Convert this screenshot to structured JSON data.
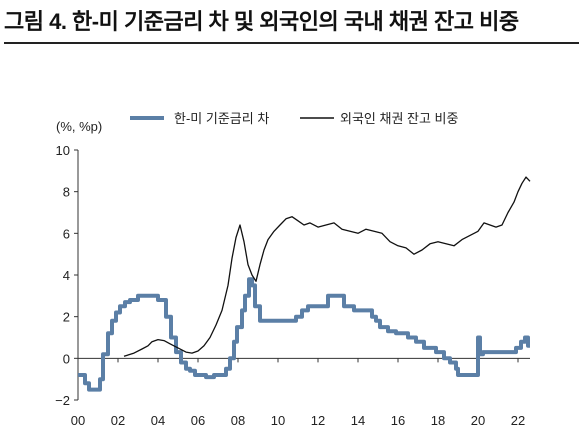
{
  "figure": {
    "title": "그림 4. 한-미 기준금리 차 및 외국인의 국내 채권 잔고 비중"
  },
  "chart_data": {
    "type": "line",
    "title": "그림 4. 한-미 기준금리 차 및 외국인의 국내 채권 잔고 비중",
    "ylabel": "(%, %p)",
    "xlabel": "",
    "xlim": [
      2000,
      2022.6
    ],
    "ylim": [
      -2,
      10
    ],
    "yticks": [
      -2,
      0,
      2,
      4,
      6,
      8,
      10
    ],
    "xticks": [
      2000,
      2002,
      2004,
      2006,
      2008,
      2010,
      2012,
      2014,
      2016,
      2018,
      2020,
      2022
    ],
    "xtick_labels": [
      "00",
      "02",
      "04",
      "06",
      "08",
      "10",
      "12",
      "14",
      "16",
      "18",
      "20",
      "22"
    ],
    "ytick_labels": [
      "−2",
      "0",
      "2",
      "4",
      "6",
      "8",
      "10"
    ],
    "grid": false,
    "legend_position": "top",
    "series": [
      {
        "name": "한-미 기준금리 차",
        "color": "#5b7fa6",
        "style": "step",
        "x": [
          2000.0,
          2000.35,
          2000.55,
          2001.1,
          2001.25,
          2001.5,
          2001.7,
          2001.9,
          2002.1,
          2002.35,
          2002.6,
          2003.0,
          2003.6,
          2004.0,
          2004.4,
          2004.65,
          2004.9,
          2005.15,
          2005.4,
          2005.6,
          2005.85,
          2006.1,
          2006.4,
          2006.6,
          2006.8,
          2007.1,
          2007.4,
          2007.6,
          2007.8,
          2007.95,
          2008.2,
          2008.35,
          2008.55,
          2008.7,
          2008.85,
          2009.1,
          2009.5,
          2010.6,
          2010.9,
          2011.2,
          2011.5,
          2012.5,
          2012.8,
          2013.3,
          2013.8,
          2014.7,
          2014.9,
          2015.1,
          2015.5,
          2015.9,
          2016.5,
          2016.9,
          2017.3,
          2017.9,
          2018.3,
          2018.6,
          2018.9,
          2019.0,
          2019.5,
          2019.75,
          2020.0,
          2020.1,
          2020.25,
          2021.6,
          2021.9,
          2022.15,
          2022.35,
          2022.5
        ],
        "values": [
          -0.8,
          -1.2,
          -1.5,
          -1.0,
          0.2,
          1.2,
          1.8,
          2.2,
          2.5,
          2.7,
          2.8,
          3.0,
          3.0,
          2.8,
          2.0,
          1.0,
          0.3,
          -0.2,
          -0.5,
          -0.6,
          -0.8,
          -0.8,
          -0.9,
          -0.9,
          -0.8,
          -0.8,
          -0.5,
          0.0,
          0.8,
          1.5,
          2.3,
          3.0,
          3.8,
          3.5,
          2.5,
          1.8,
          1.8,
          1.8,
          2.0,
          2.3,
          2.5,
          3.0,
          3.0,
          2.5,
          2.3,
          2.0,
          1.8,
          1.5,
          1.3,
          1.2,
          1.0,
          0.8,
          0.5,
          0.3,
          0.0,
          -0.2,
          -0.5,
          -0.8,
          -0.8,
          -0.8,
          1.0,
          0.2,
          0.3,
          0.3,
          0.5,
          0.8,
          1.0,
          0.6
        ]
      },
      {
        "name": "외국인 채권 잔고 비중",
        "color": "#111111",
        "style": "line",
        "x": [
          2002.3,
          2002.8,
          2003.2,
          2003.5,
          2003.7,
          2004.0,
          2004.3,
          2004.6,
          2005.0,
          2005.4,
          2005.7,
          2006.0,
          2006.3,
          2006.6,
          2006.9,
          2007.2,
          2007.5,
          2007.7,
          2007.9,
          2008.1,
          2008.3,
          2008.5,
          2008.7,
          2008.9,
          2009.1,
          2009.3,
          2009.5,
          2009.8,
          2010.1,
          2010.4,
          2010.7,
          2011.0,
          2011.3,
          2011.6,
          2012.0,
          2012.4,
          2012.8,
          2013.2,
          2013.6,
          2014.0,
          2014.4,
          2014.8,
          2015.2,
          2015.6,
          2016.0,
          2016.4,
          2016.8,
          2017.2,
          2017.6,
          2018.0,
          2018.4,
          2018.8,
          2019.2,
          2019.6,
          2020.0,
          2020.3,
          2020.6,
          2020.9,
          2021.2,
          2021.5,
          2021.8,
          2022.0,
          2022.2,
          2022.4,
          2022.6
        ],
        "values": [
          0.1,
          0.25,
          0.45,
          0.6,
          0.8,
          0.9,
          0.85,
          0.7,
          0.5,
          0.3,
          0.25,
          0.35,
          0.6,
          1.0,
          1.6,
          2.3,
          3.5,
          4.8,
          5.8,
          6.4,
          5.6,
          4.5,
          4.0,
          3.7,
          4.5,
          5.2,
          5.7,
          6.1,
          6.4,
          6.7,
          6.8,
          6.6,
          6.4,
          6.5,
          6.3,
          6.4,
          6.5,
          6.2,
          6.1,
          6.0,
          6.2,
          6.1,
          6.0,
          5.6,
          5.4,
          5.3,
          5.0,
          5.2,
          5.5,
          5.6,
          5.5,
          5.4,
          5.7,
          5.9,
          6.1,
          6.5,
          6.4,
          6.3,
          6.4,
          7.0,
          7.5,
          8.0,
          8.4,
          8.7,
          8.5
        ]
      }
    ]
  }
}
